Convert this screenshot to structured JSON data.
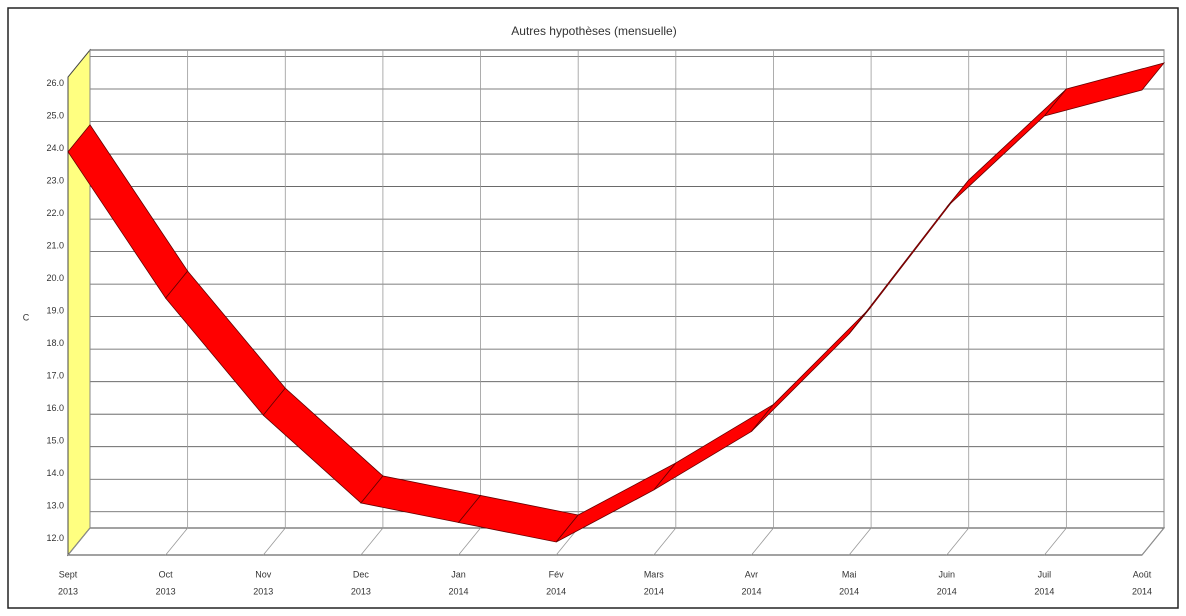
{
  "chart_data": {
    "type": "ribbon3d",
    "title": "Autres hypothèses (mensuelle)",
    "y_label": "C",
    "categories": [
      [
        "Sept",
        "2013"
      ],
      [
        "Oct",
        "2013"
      ],
      [
        "Nov",
        "2013"
      ],
      [
        "Dec",
        "2013"
      ],
      [
        "Jan",
        "2014"
      ],
      [
        "Fév",
        "2014"
      ],
      [
        "Mars",
        "2014"
      ],
      [
        "Avr",
        "2014"
      ],
      [
        "Mai",
        "2014"
      ],
      [
        "Juin",
        "2014"
      ],
      [
        "Juil",
        "2014"
      ],
      [
        "Août",
        "2014"
      ]
    ],
    "values": [
      23.9,
      19.4,
      15.8,
      13.1,
      12.5,
      11.9,
      13.5,
      15.3,
      18.3,
      22.2,
      25.0,
      25.8
    ],
    "color": "#ff0000",
    "wall_color": "#ffff80",
    "ylim": [
      11.5,
      26.2
    ],
    "yticks": [
      {
        "value": 12,
        "label": "12.0"
      },
      {
        "value": 13,
        "label": "13.0"
      },
      {
        "value": 14,
        "label": "14.0"
      },
      {
        "value": 15,
        "label": "15.0"
      },
      {
        "value": 16,
        "label": "16.0"
      },
      {
        "value": 17,
        "label": "17.0"
      },
      {
        "value": 18,
        "label": "18.0"
      },
      {
        "value": 19,
        "label": "19.0"
      },
      {
        "value": 20,
        "label": "20.0"
      },
      {
        "value": 21,
        "label": "21.0"
      },
      {
        "value": 22,
        "label": "22.0"
      },
      {
        "value": 23,
        "label": "23.0"
      },
      {
        "value": 24,
        "label": "24.0"
      },
      {
        "value": 25,
        "label": "25.0"
      },
      {
        "value": 26,
        "label": "26.0"
      }
    ],
    "grid": true
  }
}
